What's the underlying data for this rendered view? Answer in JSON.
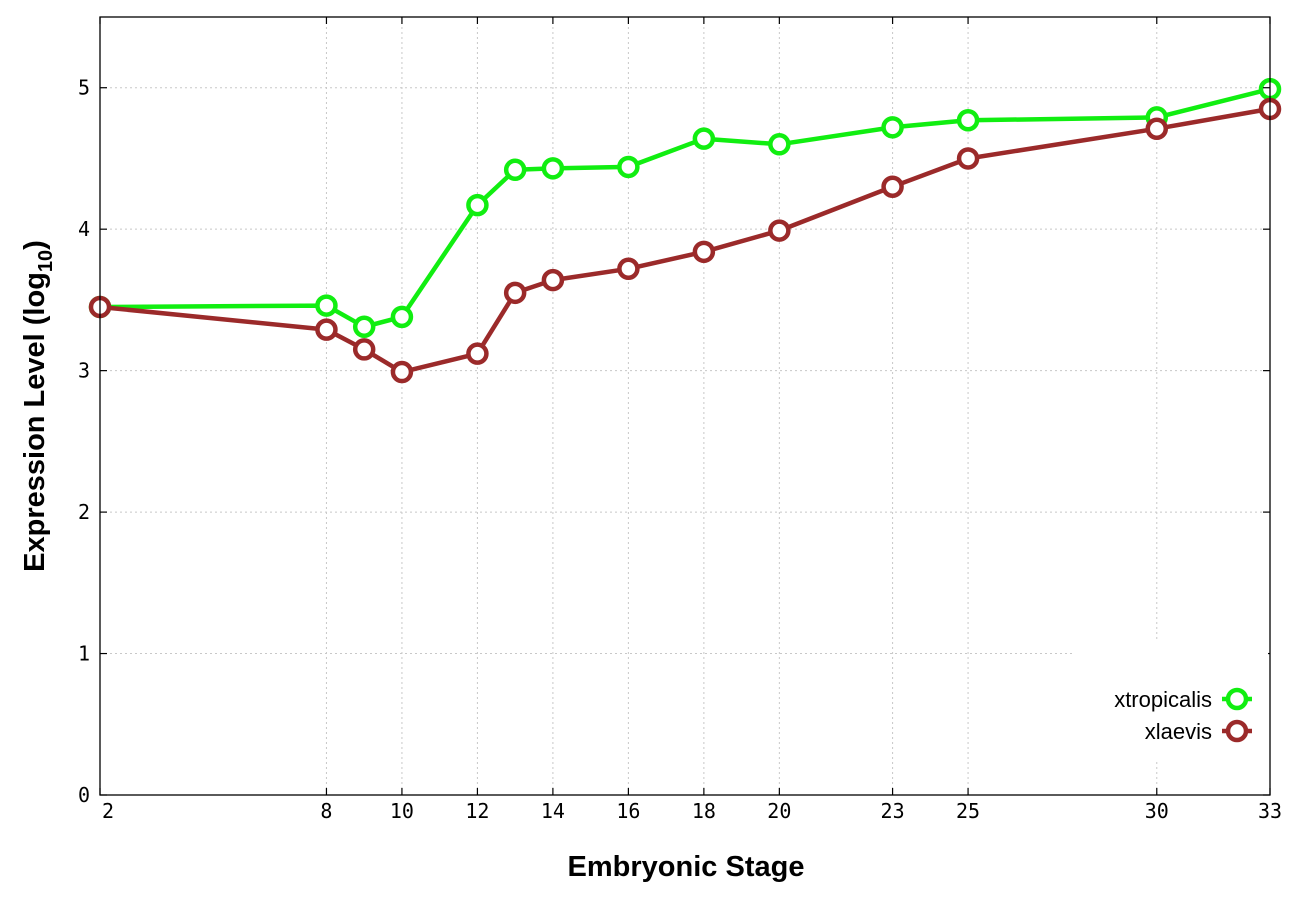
{
  "chart_data": {
    "type": "line",
    "xlabel": "Embryonic Stage",
    "ylabel_main": "Expression Level (log",
    "ylabel_sub": "10",
    "ylabel_close": ")",
    "x_ticks": [
      2,
      8,
      10,
      12,
      14,
      16,
      18,
      20,
      23,
      25,
      30,
      33
    ],
    "y_ticks": [
      0,
      1,
      2,
      3,
      4,
      5
    ],
    "xlim": [
      2,
      33
    ],
    "ylim": [
      0,
      5.5
    ],
    "grid": true,
    "legend_position": "bottom-right",
    "series": [
      {
        "name": "xtropicalis",
        "color": "#11ee11",
        "x": [
          2,
          8,
          9,
          10,
          12,
          13,
          14,
          16,
          18,
          20,
          23,
          25,
          30,
          33
        ],
        "y": [
          3.45,
          3.46,
          3.31,
          3.38,
          4.17,
          4.42,
          4.43,
          4.44,
          4.64,
          4.6,
          4.72,
          4.77,
          4.79,
          4.99
        ]
      },
      {
        "name": "xlaevis",
        "color": "#9b2a2a",
        "x": [
          2,
          8,
          9,
          10,
          12,
          13,
          14,
          16,
          18,
          20,
          23,
          25,
          30,
          33
        ],
        "y": [
          3.45,
          3.29,
          3.15,
          2.99,
          3.12,
          3.55,
          3.64,
          3.72,
          3.84,
          3.99,
          4.3,
          4.5,
          4.71,
          4.85
        ]
      }
    ]
  }
}
